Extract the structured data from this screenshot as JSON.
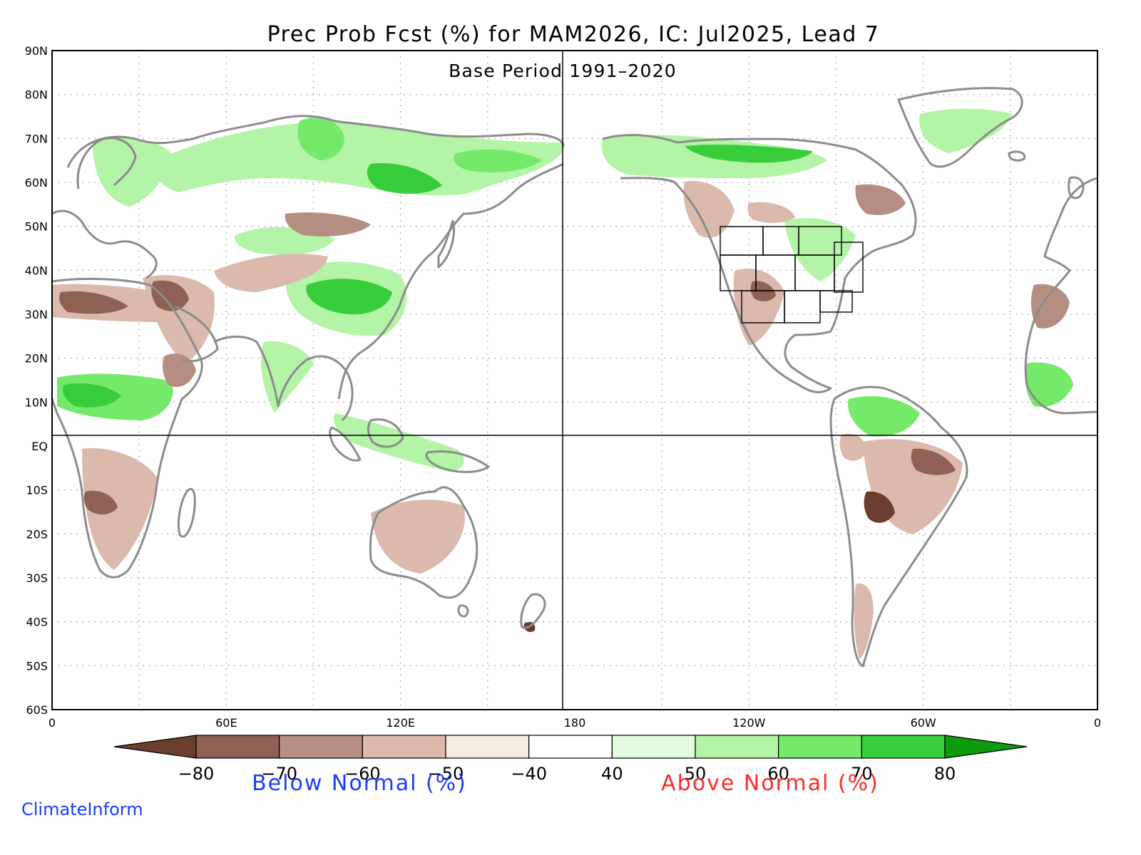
{
  "map": {
    "title": "Prec Prob Fcst (%) for MAM2026, IC: Jul2025, Lead 7",
    "subtitle": "Base Period 1991–2020",
    "lon_range": [
      0,
      360
    ],
    "lat_range": [
      -60,
      90
    ],
    "lat_labels": [
      "90N",
      "80N",
      "70N",
      "60N",
      "50N",
      "40N",
      "30N",
      "20N",
      "10N",
      "EQ",
      "10S",
      "20S",
      "30S",
      "40S",
      "50S",
      "60S"
    ],
    "lon_labels": [
      "0",
      "60E",
      "120E",
      "180",
      "120W",
      "60W",
      "0"
    ],
    "reference_lines": [
      "equator",
      "dateline"
    ],
    "grid": "dotted",
    "colors": {
      "coastline": "#8c8c8c",
      "state_borders": "#000000",
      "frame": "#000000",
      "below_label": "#1a3cff",
      "above_label": "#ff2a2a"
    },
    "regions": [
      {
        "name": "Siberia / northern Asia",
        "category": "above",
        "level": 60
      },
      {
        "name": "Western Siberia",
        "category": "above",
        "level": 50
      },
      {
        "name": "Northern Europe",
        "category": "above",
        "level": 50
      },
      {
        "name": "South China / Tibetan Plateau",
        "category": "above",
        "level": 60
      },
      {
        "name": "Central Asia band",
        "category": "below",
        "level": 50
      },
      {
        "name": "Middle East",
        "category": "below",
        "level": 50
      },
      {
        "name": "Sahara north margin",
        "category": "below",
        "level": 50
      },
      {
        "name": "West / Central Africa",
        "category": "above",
        "level": 60
      },
      {
        "name": "East Africa",
        "category": "below",
        "level": 50
      },
      {
        "name": "Southern Africa",
        "category": "below",
        "level": 60
      },
      {
        "name": "India",
        "category": "above",
        "level": 50
      },
      {
        "name": "Indonesia / New Guinea",
        "category": "above",
        "level": 50
      },
      {
        "name": "Australia interior",
        "category": "below",
        "level": 40
      },
      {
        "name": "New Zealand South Island",
        "category": "below",
        "level": 60
      },
      {
        "name": "Alaska / Northern Canada",
        "category": "above",
        "level": 60
      },
      {
        "name": "Western North America",
        "category": "below",
        "level": 50
      },
      {
        "name": "US Southwest / Mexico",
        "category": "below",
        "level": 60
      },
      {
        "name": "Great Lakes / Eastern Canada",
        "category": "above",
        "level": 50
      },
      {
        "name": "Labrador",
        "category": "below",
        "level": 50
      },
      {
        "name": "Greenland",
        "category": "above",
        "level": 50
      },
      {
        "name": "Northern South America",
        "category": "above",
        "level": 60
      },
      {
        "name": "Eastern Brazil",
        "category": "below",
        "level": 60
      },
      {
        "name": "Bolivia / Andes",
        "category": "below",
        "level": 70
      },
      {
        "name": "Southern Andes",
        "category": "below",
        "level": 50
      },
      {
        "name": "Iberia / NW Africa",
        "category": "below",
        "level": 50
      },
      {
        "name": "West Africa (east edge)",
        "category": "above",
        "level": 60
      }
    ]
  },
  "colorbar": {
    "ticks": [
      "−80",
      "−70",
      "−60",
      "−50",
      "−40",
      "40",
      "50",
      "60",
      "70",
      "80"
    ],
    "colors": [
      "#6b3d2e",
      "#8f6054",
      "#b58d81",
      "#dbb9ad",
      "#f6ece4",
      "#ffffff",
      "#e3fbe0",
      "#b3f4a6",
      "#75e96a",
      "#38cd3a",
      "#0d9c0d"
    ],
    "below_label": "Below Normal (%)",
    "above_label": "Above Normal (%)"
  },
  "credit": "ClimateInform"
}
